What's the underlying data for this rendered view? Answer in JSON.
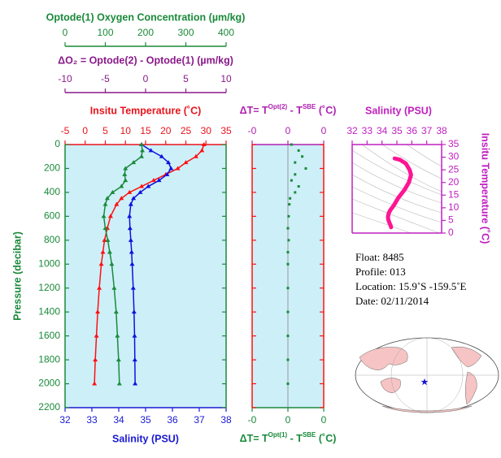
{
  "chart_data": [
    {
      "type": "profile",
      "ylabel": "Pressure (decibar)",
      "ylim": [
        0,
        2200
      ],
      "yticks": [
        0,
        200,
        400,
        600,
        800,
        1000,
        1200,
        1400,
        1600,
        1800,
        2000,
        2200
      ],
      "y_inverted": true,
      "y": [
        0,
        50,
        100,
        150,
        200,
        250,
        300,
        350,
        400,
        450,
        500,
        600,
        700,
        800,
        900,
        1000,
        1200,
        1400,
        1600,
        1800,
        2000
      ],
      "axes": [
        {
          "label": "Optode(1) Oxygen Concentration (µm/kg)",
          "xlim": [
            0,
            400
          ],
          "xticks": [
            0,
            100,
            200,
            300,
            400
          ],
          "color": "#1a8a3a"
        },
        {
          "label": "ΔO₂ = Optode(2) - Optode(1)   (µm/kg)",
          "xlim": [
            -10,
            10
          ],
          "xticks": [
            -10,
            -5,
            0,
            5,
            10
          ],
          "color": "#8a1a8a"
        },
        {
          "label": "Insitu Temperature (˚C)",
          "xlim": [
            -5,
            35
          ],
          "xticks": [
            -5,
            0,
            5,
            10,
            15,
            20,
            25,
            30,
            35
          ],
          "color": "#e8141c"
        },
        {
          "label": "Salinity (PSU)",
          "xlim": [
            32,
            38
          ],
          "xticks": [
            32,
            33,
            34,
            35,
            36,
            37,
            38
          ],
          "color": "#1a1ad0"
        }
      ],
      "series": [
        {
          "axis": 2,
          "color": "#ff1010",
          "values": [
            29.5,
            29.0,
            27.5,
            25,
            23,
            20,
            17,
            14,
            11,
            9,
            7.8,
            6.3,
            5.5,
            4.8,
            4.4,
            4.0,
            3.5,
            3.1,
            2.8,
            2.5,
            2.3
          ]
        },
        {
          "axis": 3,
          "color": "#1010e0",
          "values": [
            34.85,
            35.2,
            35.6,
            35.85,
            35.95,
            35.8,
            35.5,
            35.1,
            34.8,
            34.55,
            34.45,
            34.4,
            34.42,
            34.45,
            34.48,
            34.5,
            34.54,
            34.57,
            34.59,
            34.6,
            34.61
          ]
        },
        {
          "axis": 0,
          "color": "#1a8a3a",
          "values": [
            190,
            192,
            190,
            170,
            150,
            148,
            150,
            140,
            118,
            105,
            100,
            96,
            100,
            106,
            111,
            116,
            122,
            127,
            130,
            133,
            135
          ]
        }
      ]
    },
    {
      "type": "scatter",
      "title_parts": [
        "ΔT= T",
        "Opt(2)",
        " - T",
        "SBE",
        " (˚C)"
      ],
      "xlabel_parts": [
        "ΔT= T",
        "Opt(1)",
        " - T",
        "SBE",
        " (˚C)"
      ],
      "xlim": [
        -0.5,
        0.5
      ],
      "xticks": [
        {
          "value": -0.5,
          "label": "-0"
        },
        0,
        {
          "value": 0.5,
          "label": "0"
        }
      ],
      "ylim": [
        0,
        2200
      ],
      "yticks": [
        0,
        200,
        400,
        600,
        800,
        1000,
        1200,
        1400,
        1600,
        1800,
        2000,
        2200
      ],
      "y": [
        0,
        50,
        100,
        150,
        200,
        250,
        300,
        350,
        400,
        450,
        500,
        600,
        700,
        800,
        900,
        1000,
        1200,
        1400,
        1600,
        1800,
        2000
      ],
      "values": [
        0.05,
        0.15,
        0.2,
        0.1,
        0.25,
        0.1,
        0.05,
        0.15,
        0.1,
        0.03,
        0.02,
        0.01,
        0,
        0.01,
        0,
        0,
        0,
        0,
        0,
        0,
        0
      ],
      "color": "#1a8a3a"
    },
    {
      "type": "ts",
      "title": "Salinity (PSU)",
      "ylabel": "Insitu Temperature (˚C)",
      "xlim": [
        32,
        38
      ],
      "xticks": [
        32,
        33,
        34,
        35,
        36,
        37,
        38
      ],
      "ylim": [
        0,
        35
      ],
      "yticks": [
        0,
        5,
        10,
        15,
        20,
        25,
        30,
        35
      ],
      "x": [
        34.85,
        35.2,
        35.6,
        35.85,
        35.95,
        35.8,
        35.5,
        35.1,
        34.8,
        34.55,
        34.45,
        34.4,
        34.42,
        34.45,
        34.48,
        34.5,
        34.54,
        34.57,
        34.59,
        34.6,
        34.61
      ],
      "y": [
        29.5,
        29.0,
        27.5,
        25,
        23,
        20,
        17,
        14,
        11,
        9,
        7.8,
        6.3,
        5.5,
        4.8,
        4.4,
        4.0,
        3.5,
        3.1,
        2.8,
        2.5,
        2.3
      ],
      "color": "#ff1493"
    }
  ],
  "info": {
    "float": "Float:  8485",
    "profile": "Profile:  013",
    "location": "Location:  15.9˚S  -159.5˚E",
    "date": "Date:  02/11/2014"
  }
}
